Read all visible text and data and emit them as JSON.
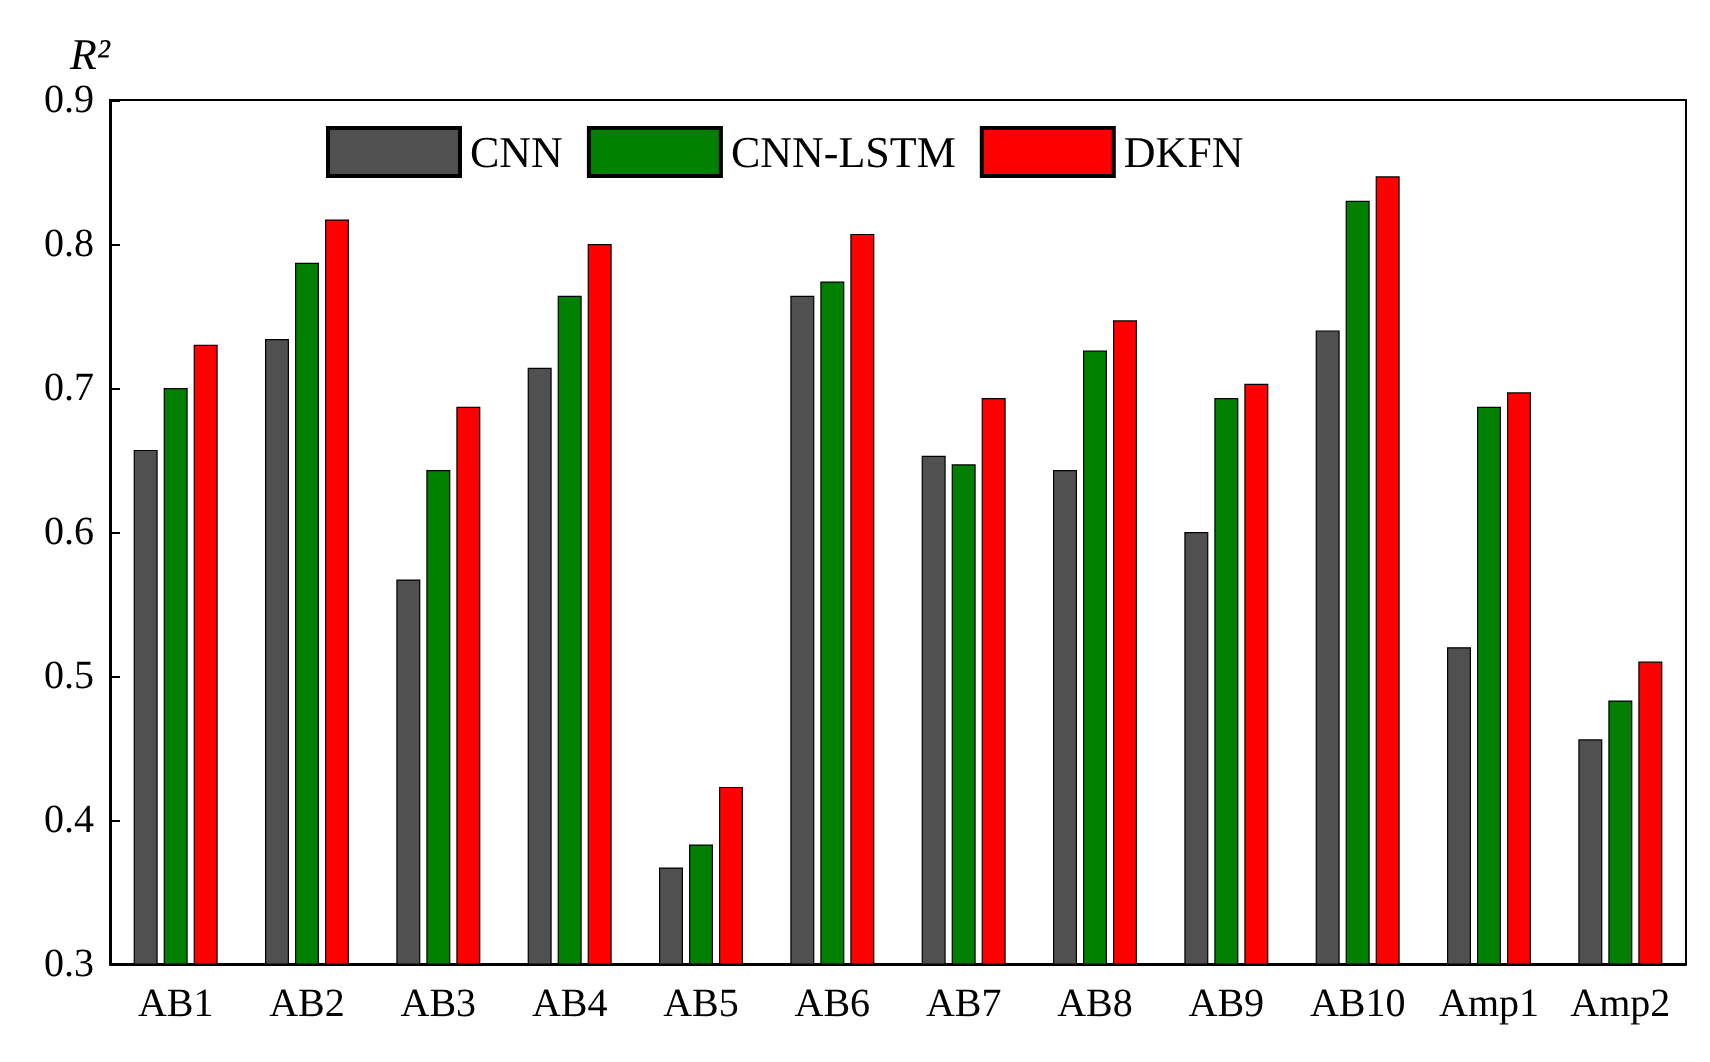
{
  "chart_data": {
    "type": "bar",
    "ylabel": "R²",
    "categories": [
      "AB1",
      "AB2",
      "AB3",
      "AB4",
      "AB5",
      "AB6",
      "AB7",
      "AB8",
      "AB9",
      "AB10",
      "Amp1",
      "Amp2"
    ],
    "series": [
      {
        "name": "CNN",
        "color": "#505050",
        "values": [
          0.657,
          0.734,
          0.567,
          0.714,
          0.367,
          0.764,
          0.653,
          0.643,
          0.6,
          0.74,
          0.52,
          0.456
        ]
      },
      {
        "name": "CNN-LSTM",
        "color": "#007f00",
        "values": [
          0.7,
          0.787,
          0.643,
          0.764,
          0.383,
          0.774,
          0.647,
          0.726,
          0.693,
          0.83,
          0.687,
          0.483
        ]
      },
      {
        "name": "DKFN",
        "color": "#ff0000",
        "values": [
          0.73,
          0.817,
          0.687,
          0.8,
          0.423,
          0.807,
          0.693,
          0.747,
          0.703,
          0.847,
          0.697,
          0.51
        ]
      }
    ],
    "ylim": [
      0.3,
      0.9
    ],
    "yticks": [
      0.3,
      0.4,
      0.5,
      0.6,
      0.7,
      0.8,
      0.9
    ],
    "grid": false,
    "legend": "top"
  }
}
